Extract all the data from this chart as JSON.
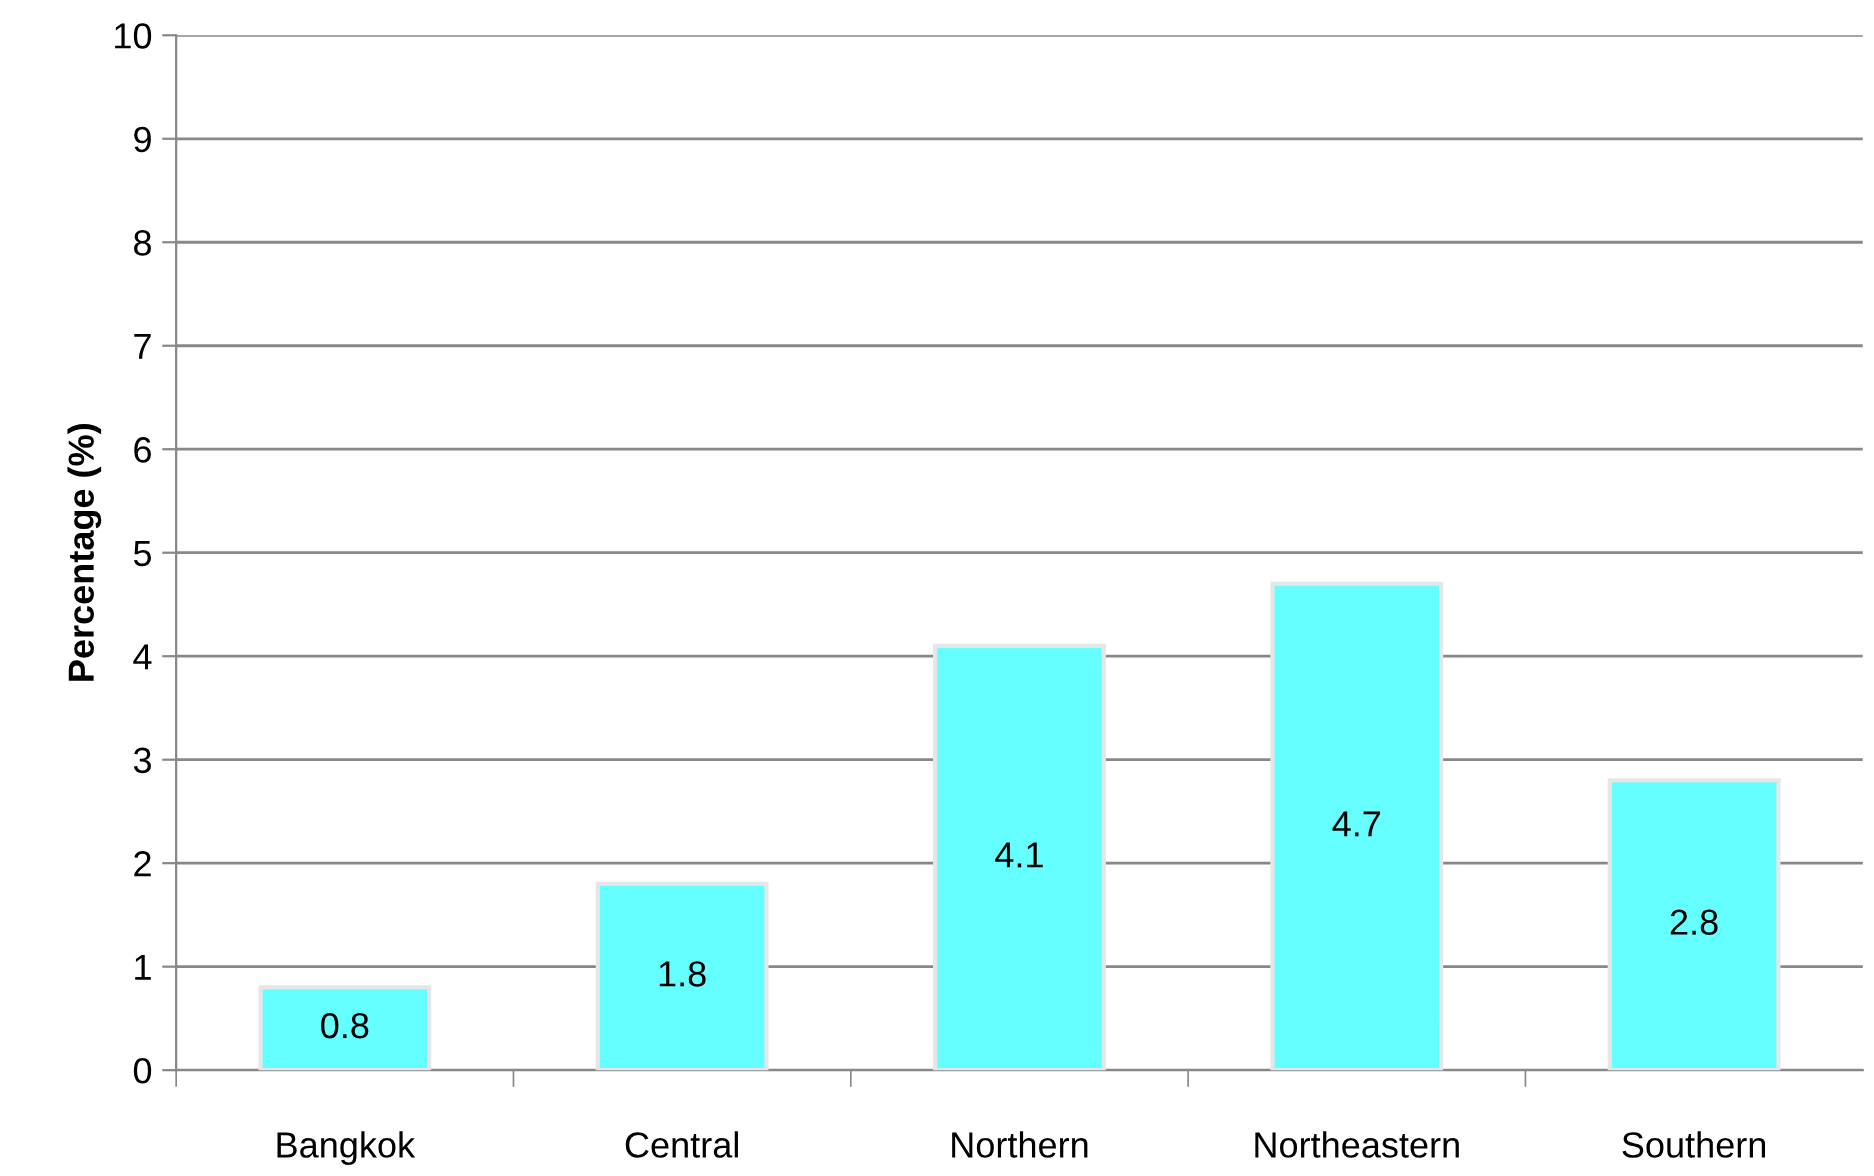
{
  "chart_data": {
    "type": "bar",
    "ylabel": "Percentage (%)",
    "categories": [
      "Bangkok",
      "Central",
      "Northern",
      "Northeastern",
      "Southern"
    ],
    "values": [
      0.8,
      1.8,
      4.1,
      4.7,
      2.8
    ],
    "color": "#66ffff",
    "ylim": [
      0,
      10
    ],
    "yticks": [
      0,
      1,
      2,
      3,
      4,
      5,
      6,
      7,
      8,
      9,
      10
    ],
    "grid": "y",
    "data_labels": true
  }
}
